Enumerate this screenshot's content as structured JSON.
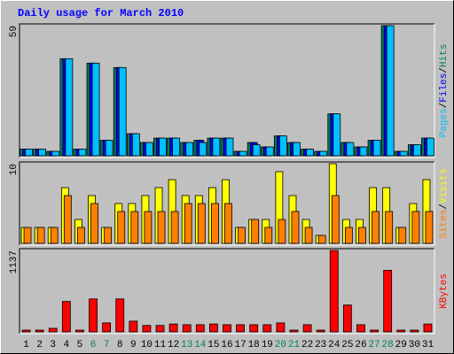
{
  "chart_data": [
    {
      "type": "bar",
      "title": "Daily usage for March 2010",
      "series": [
        {
          "name": "Hits",
          "color": "#00805c",
          "values": [
            3,
            3,
            2,
            44,
            3,
            42,
            7,
            40,
            10,
            6,
            8,
            8,
            6,
            7,
            8,
            8,
            2,
            6,
            4,
            9,
            6,
            3,
            2,
            19,
            6,
            4,
            7,
            59,
            2,
            5,
            8
          ]
        },
        {
          "name": "Files",
          "color": "#0000ff",
          "values": [
            3,
            3,
            2,
            44,
            3,
            42,
            7,
            40,
            10,
            6,
            8,
            8,
            6,
            7,
            8,
            8,
            2,
            6,
            4,
            9,
            6,
            3,
            2,
            19,
            6,
            4,
            7,
            59,
            2,
            5,
            8
          ]
        },
        {
          "name": "Pages",
          "color": "#00c0ff",
          "values": [
            3,
            3,
            2,
            44,
            3,
            42,
            7,
            40,
            10,
            6,
            8,
            8,
            6,
            6,
            8,
            8,
            2,
            5,
            4,
            9,
            6,
            3,
            2,
            19,
            6,
            4,
            7,
            59,
            2,
            5,
            8
          ]
        }
      ],
      "legend_separator": "/",
      "ylim": [
        0,
        59
      ],
      "yticks": [
        59
      ],
      "grid": false
    },
    {
      "type": "bar",
      "series": [
        {
          "name": "Visits",
          "color": "#ffff00",
          "values": [
            2,
            2,
            2,
            7,
            3,
            6,
            2,
            5,
            5,
            6,
            7,
            8,
            6,
            6,
            7,
            8,
            2,
            3,
            3,
            9,
            6,
            3,
            1,
            10,
            3,
            3,
            7,
            7,
            2,
            5,
            8
          ]
        },
        {
          "name": "Sites",
          "color": "#ff8000",
          "values": [
            2,
            2,
            2,
            6,
            2,
            5,
            2,
            4,
            4,
            4,
            4,
            4,
            5,
            5,
            5,
            5,
            2,
            3,
            2,
            3,
            4,
            2,
            1,
            6,
            2,
            2,
            4,
            4,
            2,
            4,
            4
          ]
        }
      ],
      "legend_separator": "/",
      "ylim": [
        0,
        10
      ],
      "yticks": [
        10
      ],
      "grid": false
    },
    {
      "type": "bar",
      "series": [
        {
          "name": "KBytes",
          "color": "#ff0000",
          "values": [
            25,
            25,
            50,
            425,
            25,
            460,
            125,
            460,
            150,
            90,
            90,
            110,
            100,
            100,
            110,
            100,
            100,
            100,
            100,
            125,
            25,
            100,
            25,
            1137,
            375,
            100,
            25,
            860,
            25,
            25,
            110
          ]
        }
      ],
      "ylim": [
        0,
        1137
      ],
      "yticks": [
        1137
      ],
      "grid": false,
      "categories": [
        "1",
        "2",
        "3",
        "4",
        "5",
        "6",
        "7",
        "8",
        "9",
        "10",
        "11",
        "12",
        "13",
        "14",
        "15",
        "16",
        "17",
        "18",
        "19",
        "20",
        "21",
        "22",
        "23",
        "24",
        "25",
        "26",
        "27",
        "28",
        "29",
        "30",
        "31"
      ],
      "highlight_categories": [
        "6",
        "7",
        "13",
        "14",
        "20",
        "21",
        "27",
        "28"
      ],
      "highlight_color": "#00805c"
    }
  ]
}
